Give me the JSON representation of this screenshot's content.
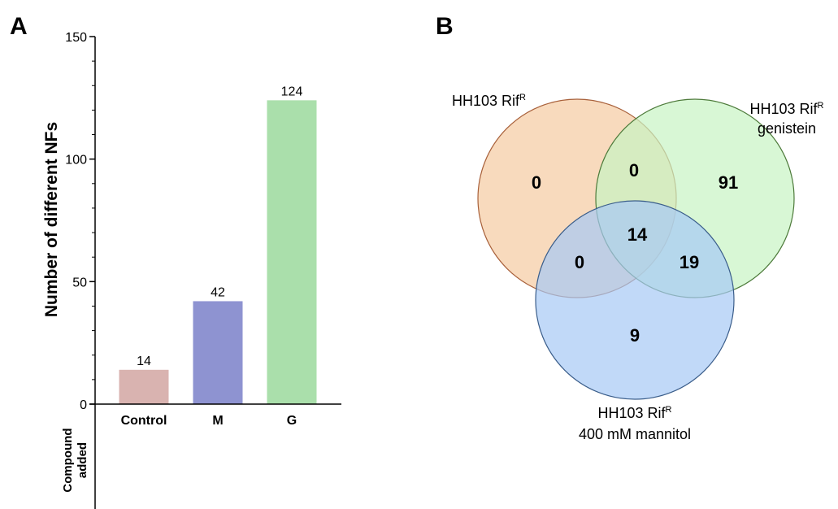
{
  "chart_data": [
    {
      "panel": "A",
      "type": "bar",
      "title": "",
      "ylabel": "Number of different NFs",
      "xlabel_line1": "Compound",
      "xlabel_line2": "added",
      "categories": [
        "Control",
        "M",
        "G"
      ],
      "values": [
        14,
        42,
        124
      ],
      "data_labels": [
        "14",
        "42",
        "124"
      ],
      "bar_colors": [
        "#d9b3b0",
        "#8e93d1",
        "#aadfab"
      ],
      "ylim": [
        0,
        150
      ],
      "yticks": [
        0,
        50,
        100,
        150
      ],
      "ytick_labels": [
        "0",
        "50",
        "100",
        "150"
      ],
      "minor_ticks": [
        10,
        20,
        30,
        40,
        60,
        70,
        80,
        90,
        110,
        120,
        130,
        140
      ],
      "grid": false
    },
    {
      "panel": "B",
      "type": "venn",
      "sets": [
        {
          "label_main": "HH103 Rif",
          "label_sup": "R",
          "label_line2": "",
          "fill": "#f7d3b2",
          "stroke": "#a8603a"
        },
        {
          "label_main": "HH103 Rif",
          "label_sup": "R",
          "label_line2": "genistein",
          "fill": "#c8f3c3",
          "stroke": "#4d7a3a"
        },
        {
          "label_main": "HH103 Rif",
          "label_sup": "R",
          "label_line2": "400 mM mannitol",
          "fill": "#a6c9f5",
          "stroke": "#3a5d8a"
        }
      ],
      "regions": {
        "only_rif": "0",
        "only_genistein": "91",
        "only_mannitol": "9",
        "rif_genistein": "0",
        "rif_mannitol": "0",
        "genistein_mannitol": "19",
        "all_three": "14"
      }
    }
  ]
}
